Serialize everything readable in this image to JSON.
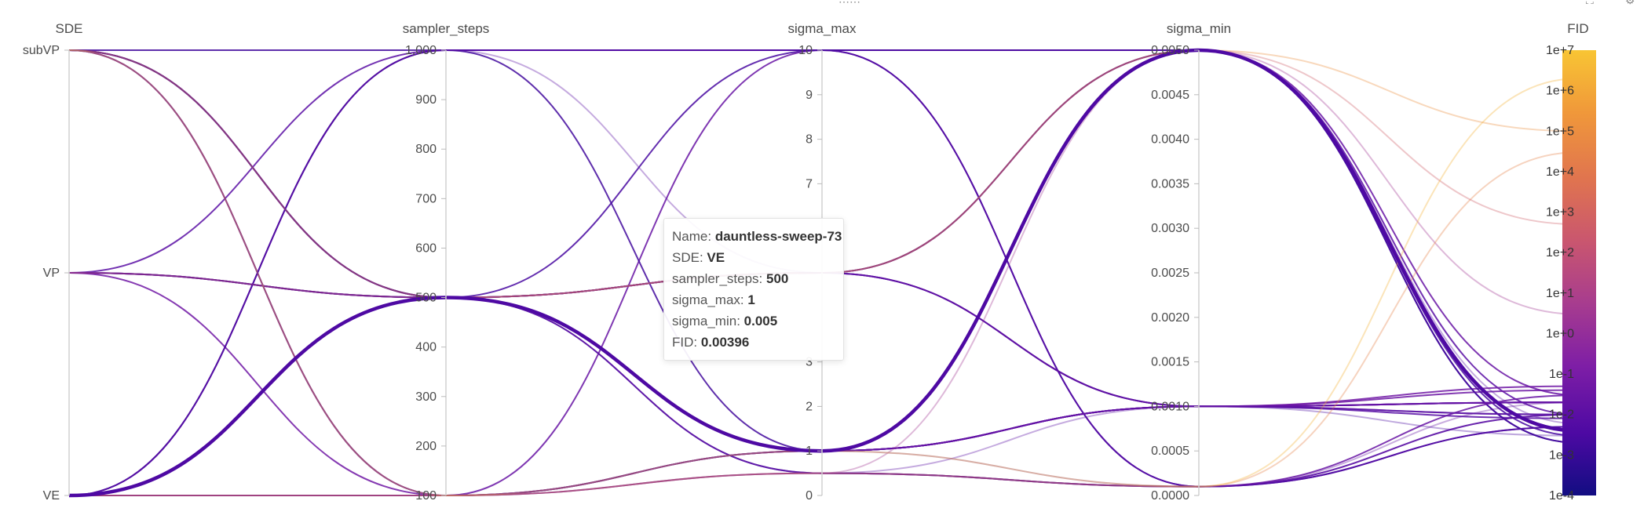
{
  "icons": {
    "drag_handle": "drag-handle-icon",
    "fullscreen": "fullscreen-icon",
    "settings": "gear-icon"
  },
  "chart_data": {
    "type": "parallel_coordinates",
    "axes": [
      {
        "name": "SDE",
        "kind": "categorical",
        "categories": [
          "subVP",
          "VP",
          "VE"
        ]
      },
      {
        "name": "sampler_steps",
        "kind": "numeric",
        "range": [
          100,
          1000
        ],
        "ticks": [
          "1,000",
          "900",
          "800",
          "700",
          "600",
          "500",
          "400",
          "300",
          "200",
          "100"
        ],
        "tick_values": [
          1000,
          900,
          800,
          700,
          600,
          500,
          400,
          300,
          200,
          100
        ]
      },
      {
        "name": "sigma_max",
        "kind": "numeric",
        "range": [
          0,
          10
        ],
        "ticks": [
          "10",
          "9",
          "8",
          "7",
          "3",
          "2",
          "1",
          "0"
        ],
        "tick_values": [
          10,
          9,
          8,
          7,
          3,
          2,
          1,
          0
        ]
      },
      {
        "name": "sigma_min",
        "kind": "numeric",
        "range": [
          0,
          0.005
        ],
        "ticks": [
          "0.0050",
          "0.0045",
          "0.0040",
          "0.0035",
          "0.0030",
          "0.0025",
          "0.0020",
          "0.0015",
          "0.0010",
          "0.0005",
          "0.0000"
        ],
        "tick_values": [
          0.005,
          0.0045,
          0.004,
          0.0035,
          0.003,
          0.0025,
          0.002,
          0.0015,
          0.001,
          0.0005,
          0
        ]
      },
      {
        "name": "FID",
        "kind": "log",
        "range": [
          0.0001,
          10000000
        ],
        "ticks": [
          "1e+7",
          "1e+6",
          "1e+5",
          "1e+4",
          "1e+3",
          "1e+2",
          "1e+1",
          "1e+0",
          "1e-1",
          "1e-2",
          "1e-3",
          "1e-4"
        ],
        "tick_exponents": [
          7,
          6,
          5,
          4,
          3,
          2,
          1,
          0,
          -1,
          -2,
          -3,
          -4
        ]
      }
    ],
    "colorscale": {
      "name": "plasma",
      "range": [
        0.0001,
        10000000
      ],
      "log": true,
      "stops": [
        "#120d82",
        "#4d09a3",
        "#7e1ea6",
        "#a73c8f",
        "#c9566f",
        "#e0744f",
        "#f0983a",
        "#f8c534"
      ]
    },
    "runs": [
      {
        "SDE": "VE",
        "sampler_steps": 500,
        "sigma_max": 1,
        "sigma_min": 0.005,
        "FID": 0.00396,
        "highlight": true
      },
      {
        "SDE": "subVP",
        "sampler_steps": 1000,
        "sigma_max": 10,
        "sigma_min": 0.005,
        "FID": 0.002
      },
      {
        "SDE": "subVP",
        "sampler_steps": 500,
        "sigma_max": 1,
        "sigma_min": 0.001,
        "FID": 0.02
      },
      {
        "SDE": "subVP",
        "sampler_steps": 500,
        "sigma_max": 5,
        "sigma_min": 0.005,
        "FID": 0.01
      },
      {
        "SDE": "subVP",
        "sampler_steps": 500,
        "sigma_max": 0.5,
        "sigma_min": 0.0001,
        "FID": 0.005
      },
      {
        "SDE": "subVP",
        "sampler_steps": 100,
        "sigma_max": 10,
        "sigma_min": 0.005,
        "FID": 0.03
      },
      {
        "SDE": "subVP",
        "sampler_steps": 100,
        "sigma_max": 1,
        "sigma_min": 0.001,
        "FID": 0.04
      },
      {
        "SDE": "subVP",
        "sampler_steps": 500,
        "sigma_max": 5,
        "sigma_min": 0.001,
        "FID": 0.003,
        "faint": true
      },
      {
        "SDE": "subVP",
        "sampler_steps": 500,
        "sigma_max": 1,
        "sigma_min": 0.005,
        "FID": 0.006,
        "faint": true
      },
      {
        "SDE": "VP",
        "sampler_steps": 1000,
        "sigma_max": 10,
        "sigma_min": 0.0001,
        "FID": 0.01
      },
      {
        "SDE": "VP",
        "sampler_steps": 500,
        "sigma_max": 5,
        "sigma_min": 0.001,
        "FID": 0.008
      },
      {
        "SDE": "VP",
        "sampler_steps": 500,
        "sigma_max": 1,
        "sigma_min": 0.001,
        "FID": 0.02
      },
      {
        "SDE": "VP",
        "sampler_steps": 500,
        "sigma_max": 5,
        "sigma_min": 0.005,
        "FID": 0.004
      },
      {
        "SDE": "VP",
        "sampler_steps": 100,
        "sigma_max": 1,
        "sigma_min": 0.001,
        "FID": 0.05
      },
      {
        "SDE": "VP",
        "sampler_steps": 500,
        "sigma_max": 0.5,
        "sigma_min": 0.001,
        "FID": 0.01,
        "faint": true
      },
      {
        "SDE": "VE",
        "sampler_steps": 1000,
        "sigma_max": 1,
        "sigma_min": 0.005,
        "FID": 0.002
      },
      {
        "SDE": "VE",
        "sampler_steps": 1000,
        "sigma_max": 10,
        "sigma_min": 0.0001,
        "FID": 0.005
      },
      {
        "SDE": "VE",
        "sampler_steps": 500,
        "sigma_max": 1,
        "sigma_min": 0.001,
        "FID": 0.01
      },
      {
        "SDE": "VE",
        "sampler_steps": 500,
        "sigma_max": 10,
        "sigma_min": 0.005,
        "FID": 0.003
      },
      {
        "SDE": "VE",
        "sampler_steps": 500,
        "sigma_max": 5,
        "sigma_min": 0.001,
        "FID": 0.02
      },
      {
        "SDE": "VE",
        "sampler_steps": 100,
        "sigma_max": 0.5,
        "sigma_min": 0.0001,
        "FID": 0.03
      },
      {
        "SDE": "VE",
        "sampler_steps": 100,
        "sigma_max": 1,
        "sigma_min": 0.001,
        "FID": 0.02
      },
      {
        "SDE": "VE",
        "sampler_steps": 500,
        "sigma_max": 0.5,
        "sigma_min": 0.0001,
        "FID": 0.01,
        "faint": true
      },
      {
        "SDE": "VE",
        "sampler_steps": 500,
        "sigma_max": 1,
        "sigma_min": 0.0001,
        "FID": 0.02,
        "faint": true
      },
      {
        "SDE": "VE",
        "sampler_steps": 100,
        "sigma_max": 0.5,
        "sigma_min": 0.005,
        "FID": 3,
        "faint": true
      },
      {
        "SDE": "VE",
        "sampler_steps": 100,
        "sigma_max": 0.5,
        "sigma_min": 0.0001,
        "FID": 30000,
        "faint": true
      },
      {
        "SDE": "subVP",
        "sampler_steps": 500,
        "sigma_max": 5,
        "sigma_min": 0.005,
        "FID": 100000,
        "faint": true
      },
      {
        "SDE": "VP",
        "sampler_steps": 500,
        "sigma_max": 5,
        "sigma_min": 0.005,
        "FID": 500,
        "faint": true
      },
      {
        "SDE": "subVP",
        "sampler_steps": 100,
        "sigma_max": 1,
        "sigma_min": 0.0001,
        "FID": 2000000,
        "faint": true
      },
      {
        "SDE": "VE",
        "sampler_steps": 1000,
        "sigma_max": 5,
        "sigma_min": 0.001,
        "FID": 0.01,
        "faint": true
      }
    ]
  },
  "tooltip": {
    "name_label": "Name:",
    "name_value": "dauntless-sweep-73",
    "sde_label": "SDE:",
    "sde_value": "VE",
    "steps_label": "sampler_steps:",
    "steps_value": "500",
    "smax_label": "sigma_max:",
    "smax_value": "1",
    "smin_label": "sigma_min:",
    "smin_value": "0.005",
    "fid_label": "FID:",
    "fid_value": "0.00396"
  }
}
